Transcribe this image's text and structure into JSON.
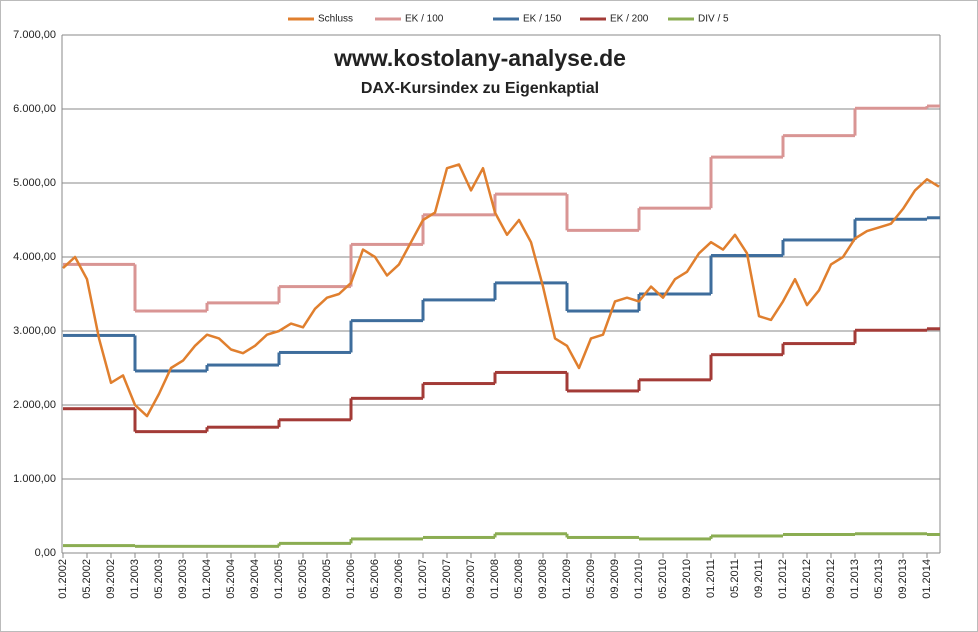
{
  "chart_data": {
    "type": "line",
    "title": "www.kostolany-analyse.de",
    "subtitle": "DAX-Kursindex zu Eigenkaptial",
    "categories": [
      "01.2002",
      null,
      "05.2002",
      null,
      "09.2002",
      null,
      "01.2003",
      null,
      "05.2003",
      null,
      "09.2003",
      null,
      "01.2004",
      null,
      "05.2004",
      null,
      "09.2004",
      null,
      "01.2005",
      null,
      "05.2005",
      null,
      "09.2005",
      null,
      "01.2006",
      null,
      "05.2006",
      null,
      "09.2006",
      null,
      "01.2007",
      null,
      "05.2007",
      null,
      "09.2007",
      null,
      "01.2008",
      null,
      "05.2008",
      null,
      "09.2008",
      null,
      "01.2009",
      null,
      "05.2009",
      null,
      "09.2009",
      null,
      "01.2010",
      null,
      "05.2010",
      null,
      "09.2010",
      null,
      "01.2011",
      null,
      "05.2011",
      null,
      "09.2011",
      null,
      "01.2012",
      null,
      "05.2012",
      null,
      "09.2012",
      null,
      "01.2013",
      null,
      "05.2013",
      null,
      "09.2013",
      null,
      "01.2014",
      null
    ],
    "series": [
      {
        "name": "Schluss",
        "color": "#e07f2e",
        "drawstyle": "line",
        "values": [
          3850,
          4000,
          3700,
          2900,
          2300,
          2400,
          2000,
          1850,
          2150,
          2500,
          2600,
          2800,
          2950,
          2900,
          2750,
          2700,
          2800,
          2950,
          3000,
          3100,
          3050,
          3300,
          3450,
          3500,
          3650,
          4100,
          4000,
          3750,
          3900,
          4200,
          4500,
          4600,
          5200,
          5250,
          4900,
          5200,
          4600,
          4300,
          4500,
          4200,
          3600,
          2900,
          2800,
          2500,
          2900,
          2950,
          3400,
          3450,
          3400,
          3600,
          3450,
          3700,
          3800,
          4050,
          4200,
          4100,
          4300,
          4050,
          3200,
          3150,
          3400,
          3700,
          3350,
          3550,
          3900,
          4000,
          4250,
          4350,
          4400,
          4450,
          4650,
          4900,
          5050,
          4950
        ]
      },
      {
        "name": "EK / 100",
        "color": "#d99594",
        "drawstyle": "steps",
        "values": [
          3900,
          3900,
          3900,
          3900,
          3900,
          3900,
          3270,
          3270,
          3270,
          3270,
          3270,
          3270,
          3380,
          3380,
          3380,
          3380,
          3380,
          3380,
          3600,
          3600,
          3600,
          3600,
          3600,
          3600,
          4170,
          4170,
          4170,
          4170,
          4170,
          4170,
          4570,
          4570,
          4570,
          4570,
          4570,
          4570,
          4850,
          4850,
          4850,
          4850,
          4850,
          4850,
          4360,
          4360,
          4360,
          4360,
          4360,
          4360,
          4660,
          4660,
          4660,
          4660,
          4660,
          4660,
          5350,
          5350,
          5350,
          5350,
          5350,
          5350,
          5640,
          5640,
          5640,
          5640,
          5640,
          5640,
          6010,
          6010,
          6010,
          6010,
          6010,
          6010,
          6040,
          6040
        ]
      },
      {
        "name": "EK / 150",
        "color": "#3e6d9c",
        "drawstyle": "steps",
        "values": [
          2940,
          2940,
          2940,
          2940,
          2940,
          2940,
          2460,
          2460,
          2460,
          2460,
          2460,
          2460,
          2540,
          2540,
          2540,
          2540,
          2540,
          2540,
          2710,
          2710,
          2710,
          2710,
          2710,
          2710,
          3140,
          3140,
          3140,
          3140,
          3140,
          3140,
          3420,
          3420,
          3420,
          3420,
          3420,
          3420,
          3650,
          3650,
          3650,
          3650,
          3650,
          3650,
          3270,
          3270,
          3270,
          3270,
          3270,
          3270,
          3500,
          3500,
          3500,
          3500,
          3500,
          3500,
          4020,
          4020,
          4020,
          4020,
          4020,
          4020,
          4230,
          4230,
          4230,
          4230,
          4230,
          4230,
          4510,
          4510,
          4510,
          4510,
          4510,
          4510,
          4530,
          4530
        ]
      },
      {
        "name": "EK / 200",
        "color": "#a33b37",
        "drawstyle": "steps",
        "values": [
          1950,
          1950,
          1950,
          1950,
          1950,
          1950,
          1640,
          1640,
          1640,
          1640,
          1640,
          1640,
          1700,
          1700,
          1700,
          1700,
          1700,
          1700,
          1800,
          1800,
          1800,
          1800,
          1800,
          1800,
          2090,
          2090,
          2090,
          2090,
          2090,
          2090,
          2290,
          2290,
          2290,
          2290,
          2290,
          2290,
          2440,
          2440,
          2440,
          2440,
          2440,
          2440,
          2190,
          2190,
          2190,
          2190,
          2190,
          2190,
          2340,
          2340,
          2340,
          2340,
          2340,
          2340,
          2680,
          2680,
          2680,
          2680,
          2680,
          2680,
          2830,
          2830,
          2830,
          2830,
          2830,
          2830,
          3010,
          3010,
          3010,
          3010,
          3010,
          3010,
          3030,
          3030
        ]
      },
      {
        "name": "DIV / 5",
        "color": "#8bad52",
        "drawstyle": "steps",
        "values": [
          100,
          100,
          100,
          100,
          100,
          100,
          90,
          90,
          90,
          90,
          90,
          90,
          90,
          90,
          90,
          90,
          90,
          90,
          130,
          130,
          130,
          130,
          130,
          130,
          190,
          190,
          190,
          190,
          190,
          190,
          210,
          210,
          210,
          210,
          210,
          210,
          260,
          260,
          260,
          260,
          260,
          260,
          210,
          210,
          210,
          210,
          210,
          210,
          190,
          190,
          190,
          190,
          190,
          190,
          230,
          230,
          230,
          230,
          230,
          230,
          250,
          250,
          250,
          250,
          250,
          250,
          260,
          260,
          260,
          260,
          260,
          260,
          250,
          250
        ]
      }
    ],
    "ylim": [
      0,
      7000
    ],
    "yticks": [
      {
        "value": 0,
        "label": "0,00"
      },
      {
        "value": 1000,
        "label": "1.000,00"
      },
      {
        "value": 2000,
        "label": "2.000,00"
      },
      {
        "value": 3000,
        "label": "3.000,00"
      },
      {
        "value": 4000,
        "label": "4.000,00"
      },
      {
        "value": 5000,
        "label": "5.000,00"
      },
      {
        "value": 6000,
        "label": "6.000,00"
      },
      {
        "value": 7000,
        "label": "7.000,00"
      }
    ],
    "grid": true,
    "legend": "top"
  }
}
